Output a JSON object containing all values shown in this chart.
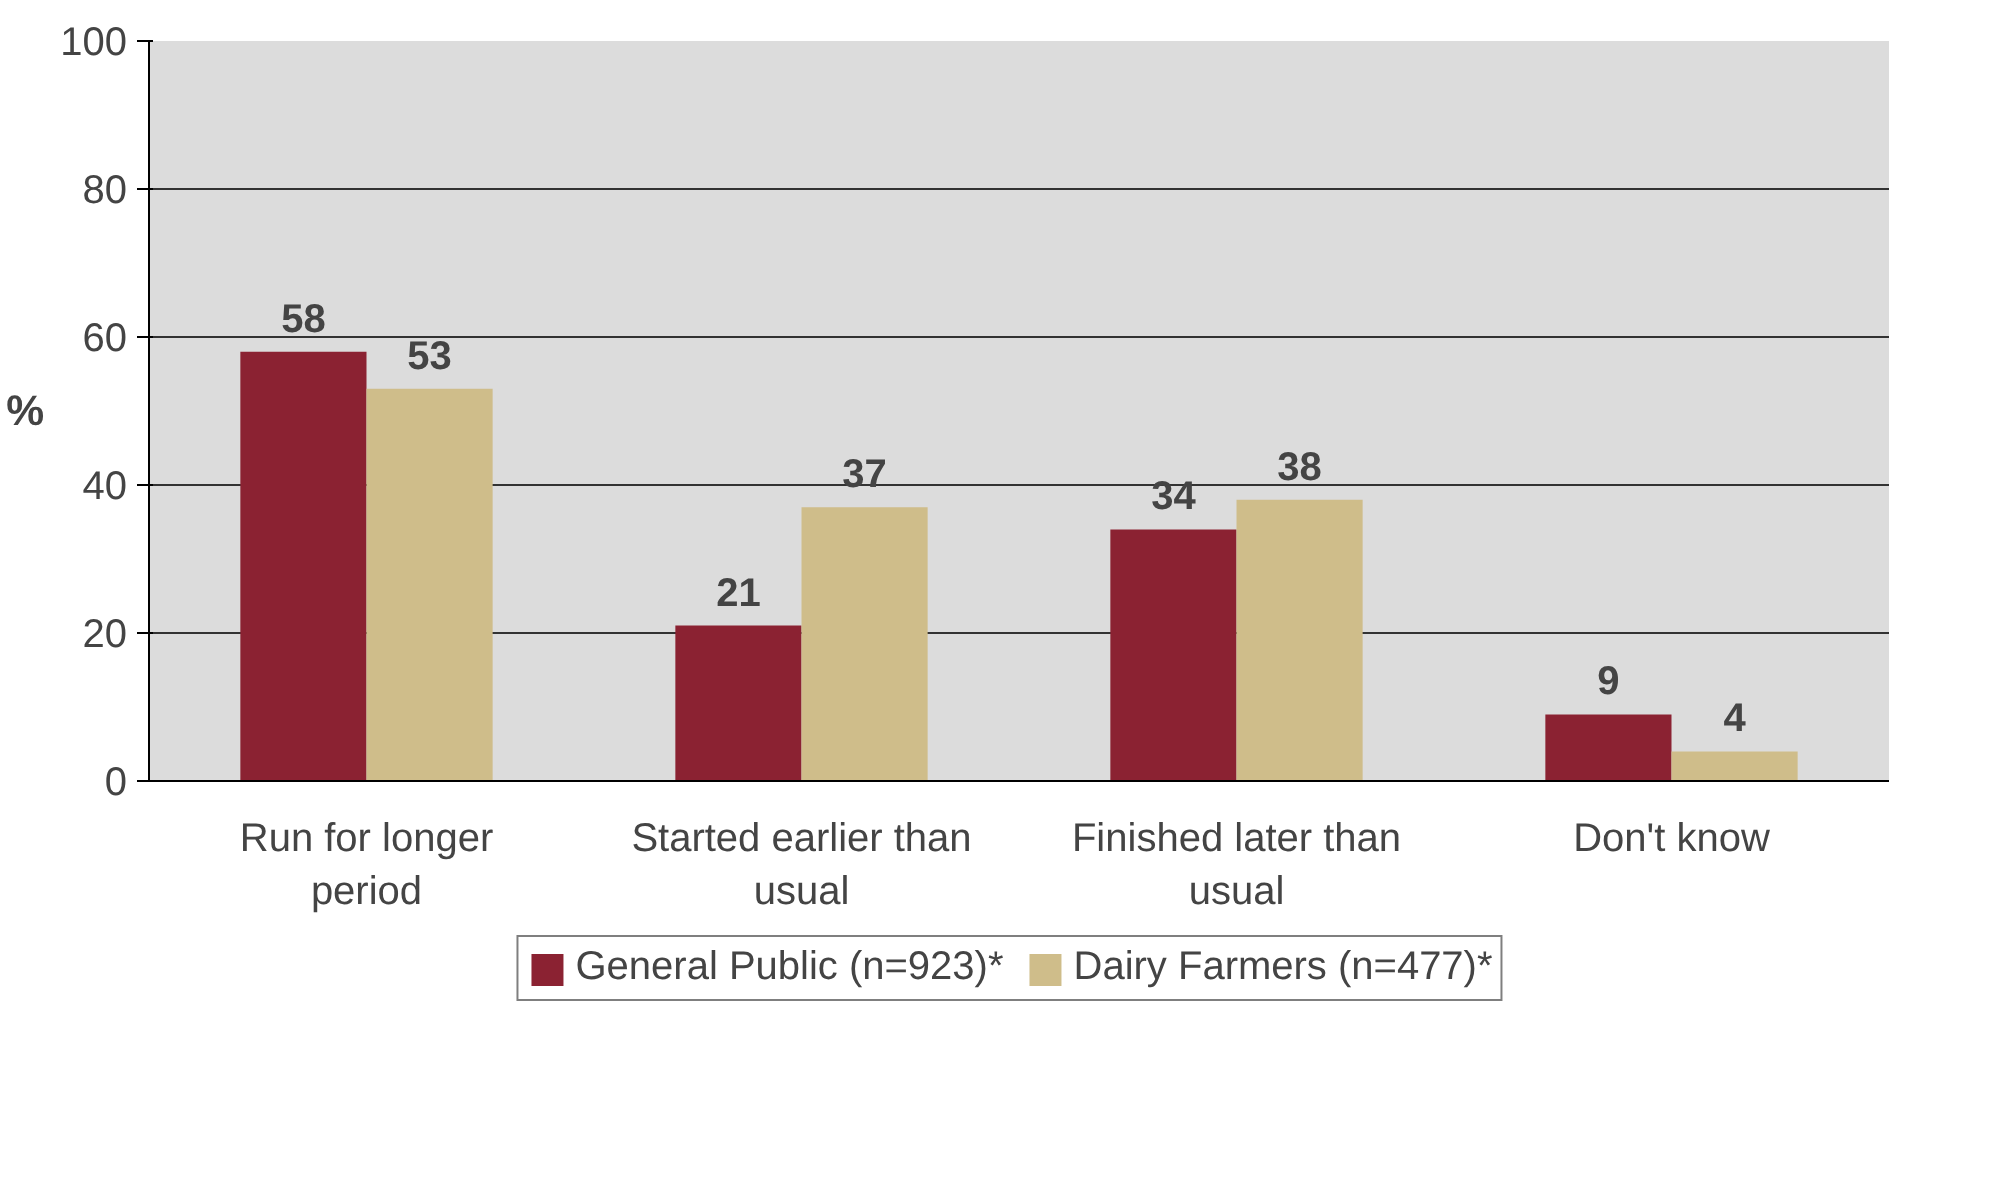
{
  "chart_data": {
    "type": "bar",
    "ylabel": "%",
    "categories": [
      "Run for longer period",
      "Started earlier than usual",
      "Finished later than usual",
      "Don't know"
    ],
    "series": [
      {
        "name": "General Public (n=923)*",
        "color": "#8b2232",
        "values": [
          58,
          21,
          34,
          9
        ]
      },
      {
        "name": "Dairy Farmers (n=477)*",
        "color": "#cfbd8a",
        "values": [
          53,
          37,
          38,
          4
        ]
      }
    ],
    "ylim": [
      0,
      100
    ],
    "yticks": [
      0,
      20,
      40,
      60,
      80,
      100
    ],
    "grid": "y",
    "legend": "bottom",
    "data_labels": true
  }
}
